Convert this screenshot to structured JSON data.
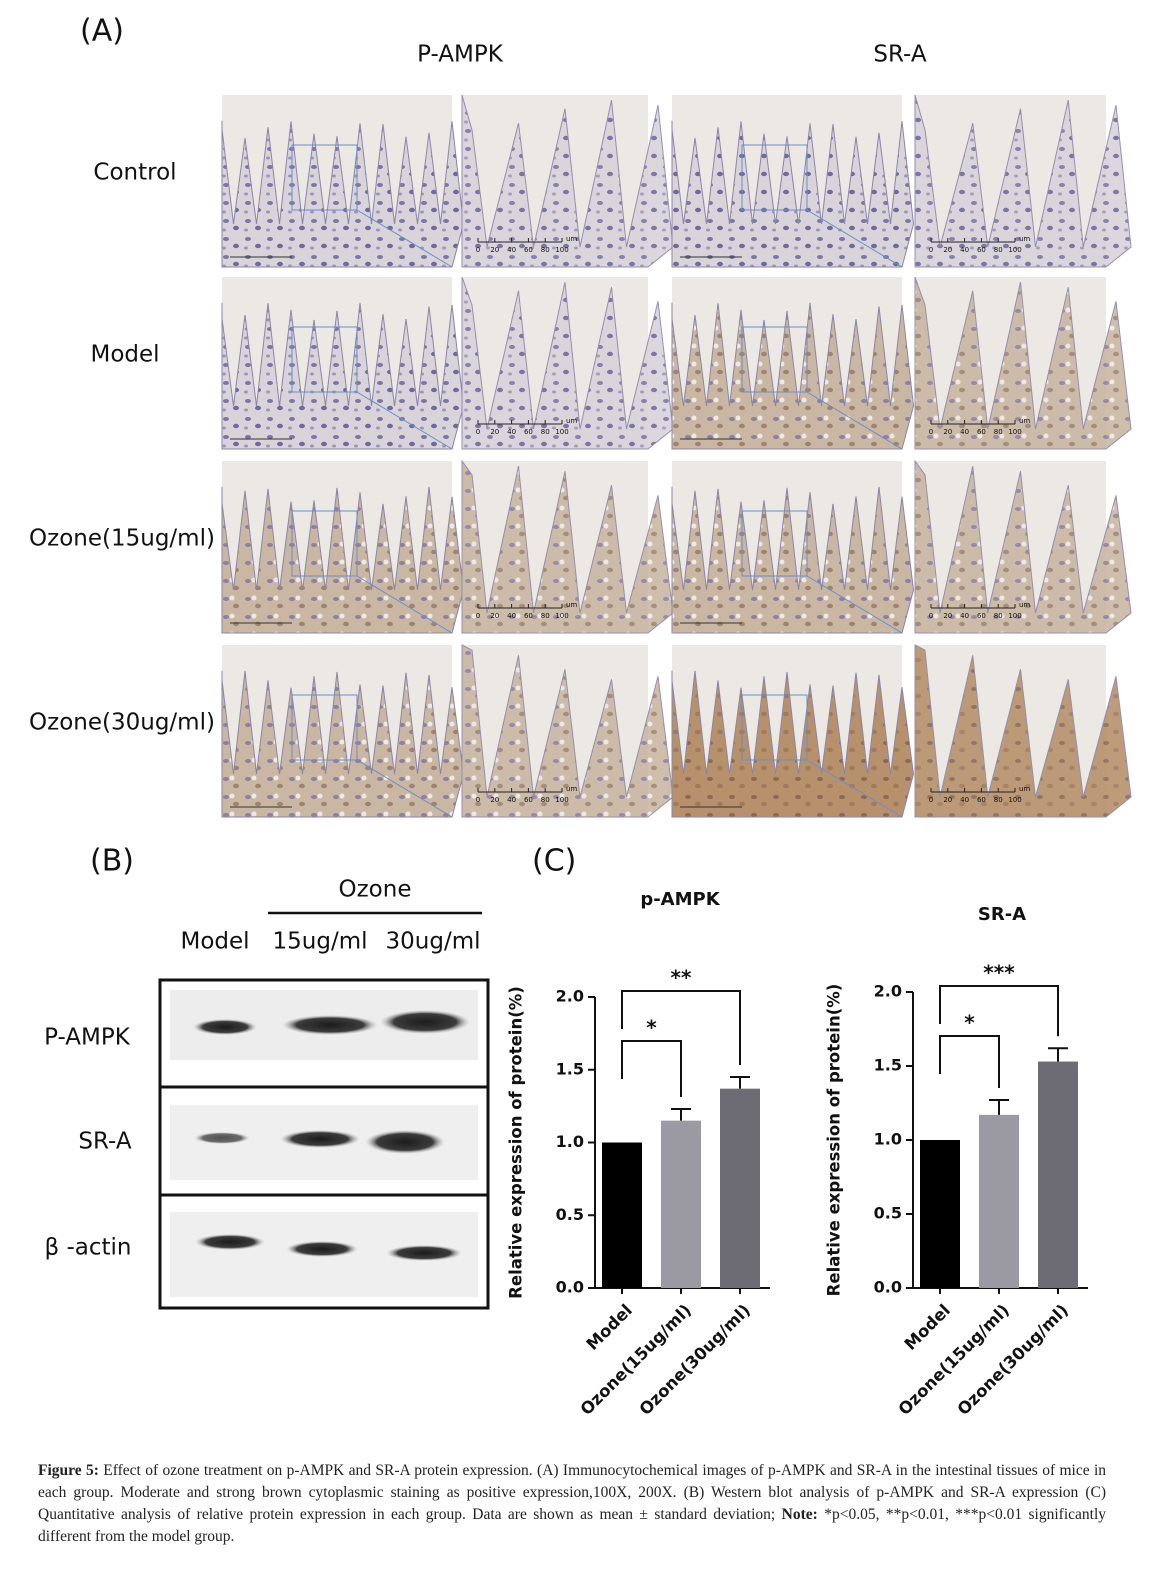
{
  "panel_a": {
    "label": "(A)",
    "columns": [
      "P-AMPK",
      "SR-A"
    ],
    "rows": [
      "Control",
      "Model",
      "Ozone(15ug/ml)",
      "Ozone(30ug/ml)"
    ],
    "scale_bar": {
      "ticks": [
        0,
        20,
        40,
        60,
        80,
        100
      ],
      "unit": "um"
    }
  },
  "panel_b": {
    "label": "(B)",
    "group": "Ozone",
    "lanes": [
      "Model",
      "15ug/ml",
      "30ug/ml"
    ],
    "proteins": [
      "P-AMPK",
      "SR-A",
      "β -actin"
    ]
  },
  "panel_c": {
    "label": "(C)"
  },
  "chart_data": [
    {
      "type": "bar",
      "title": "p-AMPK",
      "y_label": "Relative expression of protein(%)",
      "categories": [
        "Model",
        "Ozone(15ug/ml)",
        "Ozone(30ug/ml)"
      ],
      "values": [
        1.0,
        1.15,
        1.37
      ],
      "errors": [
        null,
        0.08,
        0.08
      ],
      "colors": [
        "#000000",
        "#9b9aa3",
        "#6d6b73"
      ],
      "ylim": [
        0,
        2
      ],
      "yticks": [
        {
          "value": 0,
          "label": "0.0"
        },
        0.5,
        {
          "value": 1,
          "label": "1.0"
        },
        1.5,
        {
          "value": 2,
          "label": "2.0"
        }
      ],
      "annotations": [
        {
          "text": "*",
          "between": [
            0,
            1
          ]
        },
        {
          "text": "**",
          "between": [
            0,
            2
          ]
        }
      ]
    },
    {
      "type": "bar",
      "title": "SR-A",
      "y_label": "Relative expression of protein(%)",
      "categories": [
        "Model",
        "Ozone(15ug/ml)",
        "Ozone(30ug/ml)"
      ],
      "values": [
        1.0,
        1.17,
        1.53
      ],
      "errors": [
        null,
        0.1,
        0.09
      ],
      "colors": [
        "#000000",
        "#9b9aa3",
        "#6d6b73"
      ],
      "ylim": [
        0,
        2
      ],
      "yticks": [
        {
          "value": 0,
          "label": "0.0"
        },
        0.5,
        {
          "value": 1,
          "label": "1.0"
        },
        1.5,
        {
          "value": 2,
          "label": "2.0"
        }
      ],
      "annotations": [
        {
          "text": "*",
          "between": [
            0,
            1
          ]
        },
        {
          "text": "***",
          "between": [
            0,
            2
          ]
        }
      ]
    }
  ],
  "caption": {
    "label": "Figure 5:",
    "text": "Effect of ozone treatment on p-AMPK and SR-A protein expression. (A) Immunocytochemical images of p-AMPK and SR-A in the intestinal tissues of mice in each group. Moderate and strong brown cytoplasmic staining as positive expression,100X, 200X. (B) Western blot analysis of p-AMPK and SR-A expression (C) Quantitative analysis of relative protein expression in each group. Data are shown as mean ± standard deviation;",
    "note_label": "Note:",
    "note": "*p<0.05, **p<0.01, ***p<0.01 significantly different from the model group."
  }
}
